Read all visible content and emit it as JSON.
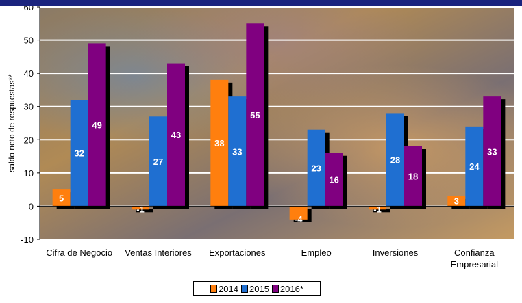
{
  "chart_data": {
    "type": "bar",
    "ylabel": "saldo neto de respuestas**",
    "ylim": [
      -10,
      60
    ],
    "yticks": [
      -10,
      0,
      10,
      20,
      30,
      40,
      50,
      60
    ],
    "grid": true,
    "legend_position": "bottom",
    "categories": [
      [
        "Cifra de Negocio"
      ],
      [
        "Ventas Interiores"
      ],
      [
        "Exportaciones"
      ],
      [
        "Empleo"
      ],
      [
        "Inversiones"
      ],
      [
        "Confianza",
        "Empresarial"
      ]
    ],
    "series": [
      {
        "name": "2014",
        "color": "#ff7f0e",
        "values": [
          5,
          -1,
          38,
          -4,
          -1,
          3
        ],
        "labels": [
          "5",
          "-1",
          "38",
          "-4",
          "-1",
          "3"
        ]
      },
      {
        "name": "2015",
        "color": "#1f6fd1",
        "values": [
          32,
          27,
          33,
          23,
          28,
          24
        ],
        "labels": [
          "32",
          "27",
          "33",
          "23",
          "28",
          "24"
        ]
      },
      {
        "name": "2016*",
        "color": "#800080",
        "values": [
          49,
          43,
          55,
          16,
          18,
          33
        ],
        "labels": [
          "49",
          "43",
          "55",
          "16",
          "18",
          "33"
        ]
      }
    ]
  },
  "colors": {
    "top_bar": "#1a237e",
    "gridline": "#ffffff",
    "shadow": "#000000",
    "data_label": "#ffffff"
  }
}
